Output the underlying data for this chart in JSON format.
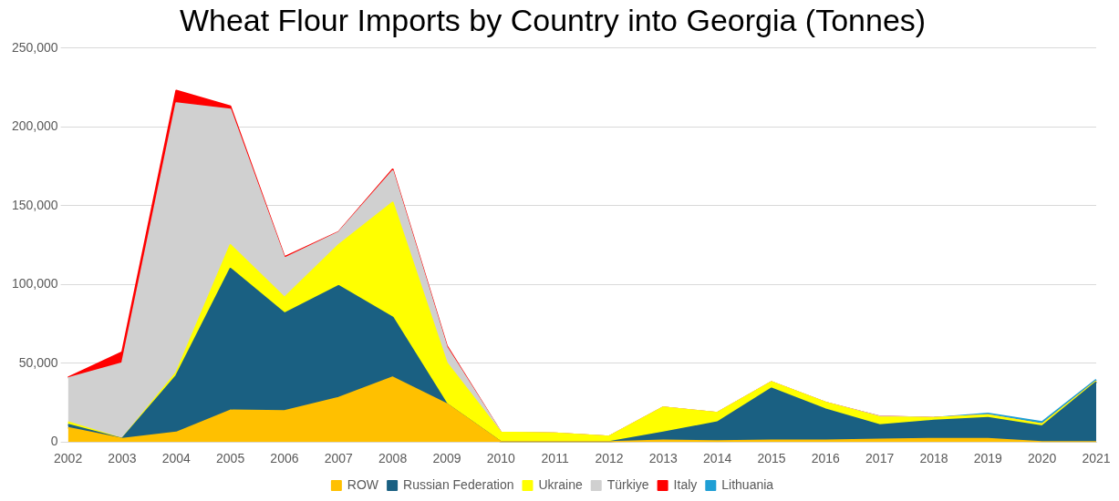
{
  "chart_data": {
    "type": "area",
    "title": "Wheat Flour Imports by Country into Georgia (Tonnes)",
    "stacked": true,
    "grid": "y",
    "legend": "bottom",
    "marker": "none",
    "categories": [
      "2002",
      "2003",
      "2004",
      "2005",
      "2006",
      "2007",
      "2008",
      "2009",
      "2010",
      "2011",
      "2012",
      "2013",
      "2014",
      "2015",
      "2016",
      "2017",
      "2018",
      "2019",
      "2020",
      "2021"
    ],
    "ylim": [
      0,
      250000
    ],
    "yticks": [
      {
        "value": 0,
        "label": "0"
      },
      {
        "value": 50000,
        "label": "50,000"
      },
      {
        "value": 100000,
        "label": "100,000"
      },
      {
        "value": 150000,
        "label": "150,000"
      },
      {
        "value": 200000,
        "label": "200,000"
      },
      {
        "value": 250000,
        "label": "250,000"
      }
    ],
    "series": [
      {
        "name": "ROW",
        "color": "#ffc000",
        "values": [
          9000,
          2000,
          6000,
          20000,
          19600,
          28000,
          41000,
          24000,
          0,
          0,
          0,
          1000,
          500,
          1000,
          1000,
          1500,
          2000,
          2000,
          0,
          0
        ]
      },
      {
        "name": "Russian Federation",
        "color": "#1a6082",
        "values": [
          2000,
          0,
          36000,
          90000,
          62000,
          71000,
          38000,
          0,
          0,
          0,
          0,
          5000,
          12000,
          33000,
          19700,
          9200,
          11500,
          13300,
          10000,
          38000
        ]
      },
      {
        "name": "Ukraine",
        "color": "#ffff00",
        "values": [
          1500,
          0,
          2000,
          15000,
          10000,
          26000,
          73000,
          26000,
          6000,
          5500,
          3500,
          16000,
          6000,
          4000,
          4300,
          5000,
          1800,
          1800,
          1200,
          500
        ]
      },
      {
        "name": "Türkiye",
        "color": "#d0d0d0",
        "values": [
          28000,
          48000,
          171000,
          86000,
          25000,
          8000,
          20000,
          10000,
          0,
          0,
          0,
          0,
          0,
          0,
          0,
          500,
          0,
          0,
          0,
          0
        ]
      },
      {
        "name": "Italy",
        "color": "#ff0000",
        "values": [
          500,
          7000,
          8000,
          2000,
          800,
          300,
          1000,
          1000,
          0,
          0,
          0,
          0,
          0,
          0,
          0,
          0,
          0,
          0,
          0,
          0
        ]
      },
      {
        "name": "Lithuania",
        "color": "#1f9fd5",
        "values": [
          null,
          null,
          null,
          null,
          null,
          null,
          null,
          null,
          null,
          null,
          null,
          null,
          null,
          null,
          null,
          null,
          0,
          1000,
          1500,
          1000
        ]
      }
    ]
  }
}
